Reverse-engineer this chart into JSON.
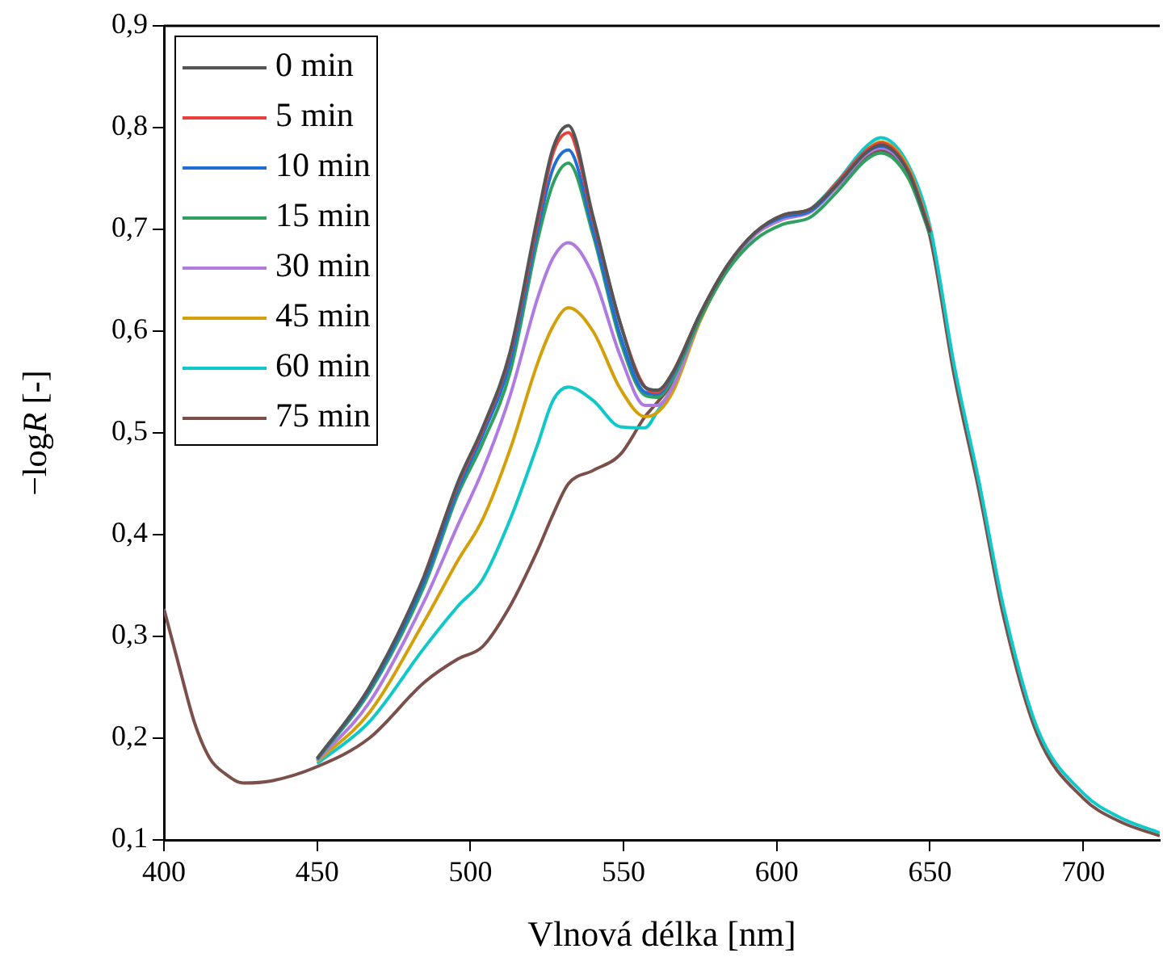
{
  "chart_data": {
    "type": "line",
    "xlabel": "Vlnová délka [nm]",
    "ylabel": "−log$_{}$R [-]",
    "xlim": [
      400,
      725
    ],
    "xticks": [
      400,
      450,
      500,
      550,
      600,
      650,
      700
    ],
    "ylim": [
      0.1,
      0.9
    ],
    "yticks": [
      {
        "value": 0.1,
        "label": "0,1"
      },
      {
        "value": 0.2,
        "label": "0,2"
      },
      {
        "value": 0.3,
        "label": "0,3"
      },
      {
        "value": 0.4,
        "label": "0,4"
      },
      {
        "value": 0.5,
        "label": "0,5"
      },
      {
        "value": 0.6,
        "label": "0,6"
      },
      {
        "value": 0.7,
        "label": "0,7"
      },
      {
        "value": 0.8,
        "label": "0,8"
      },
      {
        "value": 0.9,
        "label": "0,9"
      }
    ],
    "grid": false,
    "legend": "top left",
    "marker": "none",
    "line_style": "solid",
    "x": [
      400,
      405,
      410,
      415,
      420,
      426,
      435,
      450,
      467,
      485,
      496,
      504,
      513,
      522,
      527,
      532,
      540,
      549,
      557,
      561,
      566,
      575,
      584,
      593,
      602,
      611,
      620,
      629,
      634,
      643,
      650,
      658,
      666,
      674,
      685,
      700,
      712,
      725
    ],
    "series": [
      {
        "name": "0 min",
        "color": "#555555",
        "x": [
          450,
          467,
          485,
          496,
          504,
          513,
          522,
          527,
          532,
          540,
          549,
          557,
          561,
          566,
          575,
          584,
          593,
          602,
          611,
          620,
          629,
          634,
          643,
          650
        ],
        "values": [
          0.18,
          0.25,
          0.36,
          0.452,
          0.505,
          0.58,
          0.713,
          0.78,
          0.802,
          0.713,
          0.607,
          0.545,
          0.542,
          0.559,
          0.617,
          0.665,
          0.697,
          0.714,
          0.72,
          0.745,
          0.775,
          0.783,
          0.756,
          0.697
        ]
      },
      {
        "name": "5 min",
        "color": "#e8413c",
        "x": [
          485,
          496,
          504,
          513,
          522,
          527,
          532,
          540,
          549,
          557,
          561,
          566,
          575,
          584,
          593,
          602,
          611,
          620,
          629,
          634,
          643,
          650
        ],
        "values": [
          0.36,
          0.45,
          0.503,
          0.578,
          0.708,
          0.775,
          0.795,
          0.71,
          0.607,
          0.545,
          0.54,
          0.559,
          0.617,
          0.665,
          0.697,
          0.714,
          0.72,
          0.747,
          0.777,
          0.785,
          0.758,
          0.699
        ]
      },
      {
        "name": "10 min",
        "color": "#1f6fd6",
        "x": [
          450,
          467,
          485,
          496,
          504,
          513,
          522,
          527,
          532,
          540,
          549,
          557,
          561,
          566,
          575,
          584,
          593,
          602,
          611,
          620,
          629,
          634,
          643,
          650
        ],
        "values": [
          0.18,
          0.248,
          0.355,
          0.445,
          0.498,
          0.57,
          0.7,
          0.76,
          0.778,
          0.7,
          0.595,
          0.54,
          0.538,
          0.557,
          0.617,
          0.665,
          0.697,
          0.712,
          0.718,
          0.745,
          0.775,
          0.782,
          0.757,
          0.698
        ]
      },
      {
        "name": "15 min",
        "color": "#2fa060",
        "x": [
          450,
          467,
          485,
          496,
          504,
          513,
          522,
          527,
          532,
          540,
          549,
          557,
          561,
          566,
          575,
          584,
          593,
          602,
          611,
          620,
          629,
          634,
          643,
          650
        ],
        "values": [
          0.179,
          0.245,
          0.35,
          0.44,
          0.49,
          0.56,
          0.69,
          0.745,
          0.765,
          0.695,
          0.59,
          0.537,
          0.535,
          0.553,
          0.612,
          0.66,
          0.69,
          0.705,
          0.712,
          0.738,
          0.768,
          0.775,
          0.75,
          0.695
        ]
      },
      {
        "name": "30 min",
        "color": "#b07be0",
        "x": [
          450,
          467,
          485,
          496,
          504,
          513,
          522,
          527,
          532,
          540,
          549,
          557,
          561,
          566,
          575,
          584,
          593,
          602,
          611,
          620,
          629,
          634,
          643,
          650
        ],
        "values": [
          0.178,
          0.235,
          0.335,
          0.41,
          0.463,
          0.537,
          0.633,
          0.672,
          0.687,
          0.655,
          0.575,
          0.527,
          0.527,
          0.545,
          0.612,
          0.663,
          0.695,
          0.71,
          0.717,
          0.743,
          0.773,
          0.78,
          0.755,
          0.697
        ]
      },
      {
        "name": "45 min",
        "color": "#d4a00a",
        "x": [
          450,
          467,
          485,
          496,
          504,
          513,
          522,
          527,
          532,
          540,
          549,
          557,
          561,
          566,
          575,
          584,
          593,
          602,
          611,
          620,
          629,
          634,
          643,
          650
        ],
        "values": [
          0.177,
          0.225,
          0.315,
          0.375,
          0.415,
          0.484,
          0.569,
          0.605,
          0.623,
          0.6,
          0.543,
          0.516,
          0.52,
          0.54,
          0.61,
          0.662,
          0.695,
          0.71,
          0.718,
          0.745,
          0.777,
          0.786,
          0.76,
          0.7
        ]
      },
      {
        "name": "60 min",
        "color": "#10c8c8",
        "x": [
          450,
          467,
          485,
          496,
          504,
          513,
          522,
          527,
          532,
          540,
          549,
          557,
          561,
          566,
          575,
          584,
          593,
          602,
          611,
          620,
          629,
          634,
          643,
          650,
          658,
          666,
          674,
          685,
          700,
          712,
          725
        ],
        "values": [
          0.175,
          0.216,
          0.289,
          0.33,
          0.356,
          0.415,
          0.489,
          0.532,
          0.545,
          0.532,
          0.506,
          0.505,
          0.521,
          0.545,
          0.613,
          0.664,
          0.697,
          0.712,
          0.72,
          0.748,
          0.781,
          0.79,
          0.763,
          0.703,
          0.565,
          0.452,
          0.329,
          0.21,
          0.146,
          0.122,
          0.107
        ]
      },
      {
        "name": "75 min",
        "color": "#7b4f4a",
        "values": [
          0.327,
          0.27,
          0.215,
          0.18,
          0.165,
          0.156,
          0.158,
          0.172,
          0.2,
          0.255,
          0.278,
          0.29,
          0.33,
          0.385,
          0.42,
          0.45,
          0.463,
          0.479,
          0.516,
          0.53,
          0.55,
          0.615,
          0.664,
          0.696,
          0.711,
          0.718,
          0.743,
          0.771,
          0.778,
          0.752,
          0.693,
          0.555,
          0.443,
          0.32,
          0.204,
          0.141,
          0.118,
          0.104
        ]
      }
    ]
  }
}
